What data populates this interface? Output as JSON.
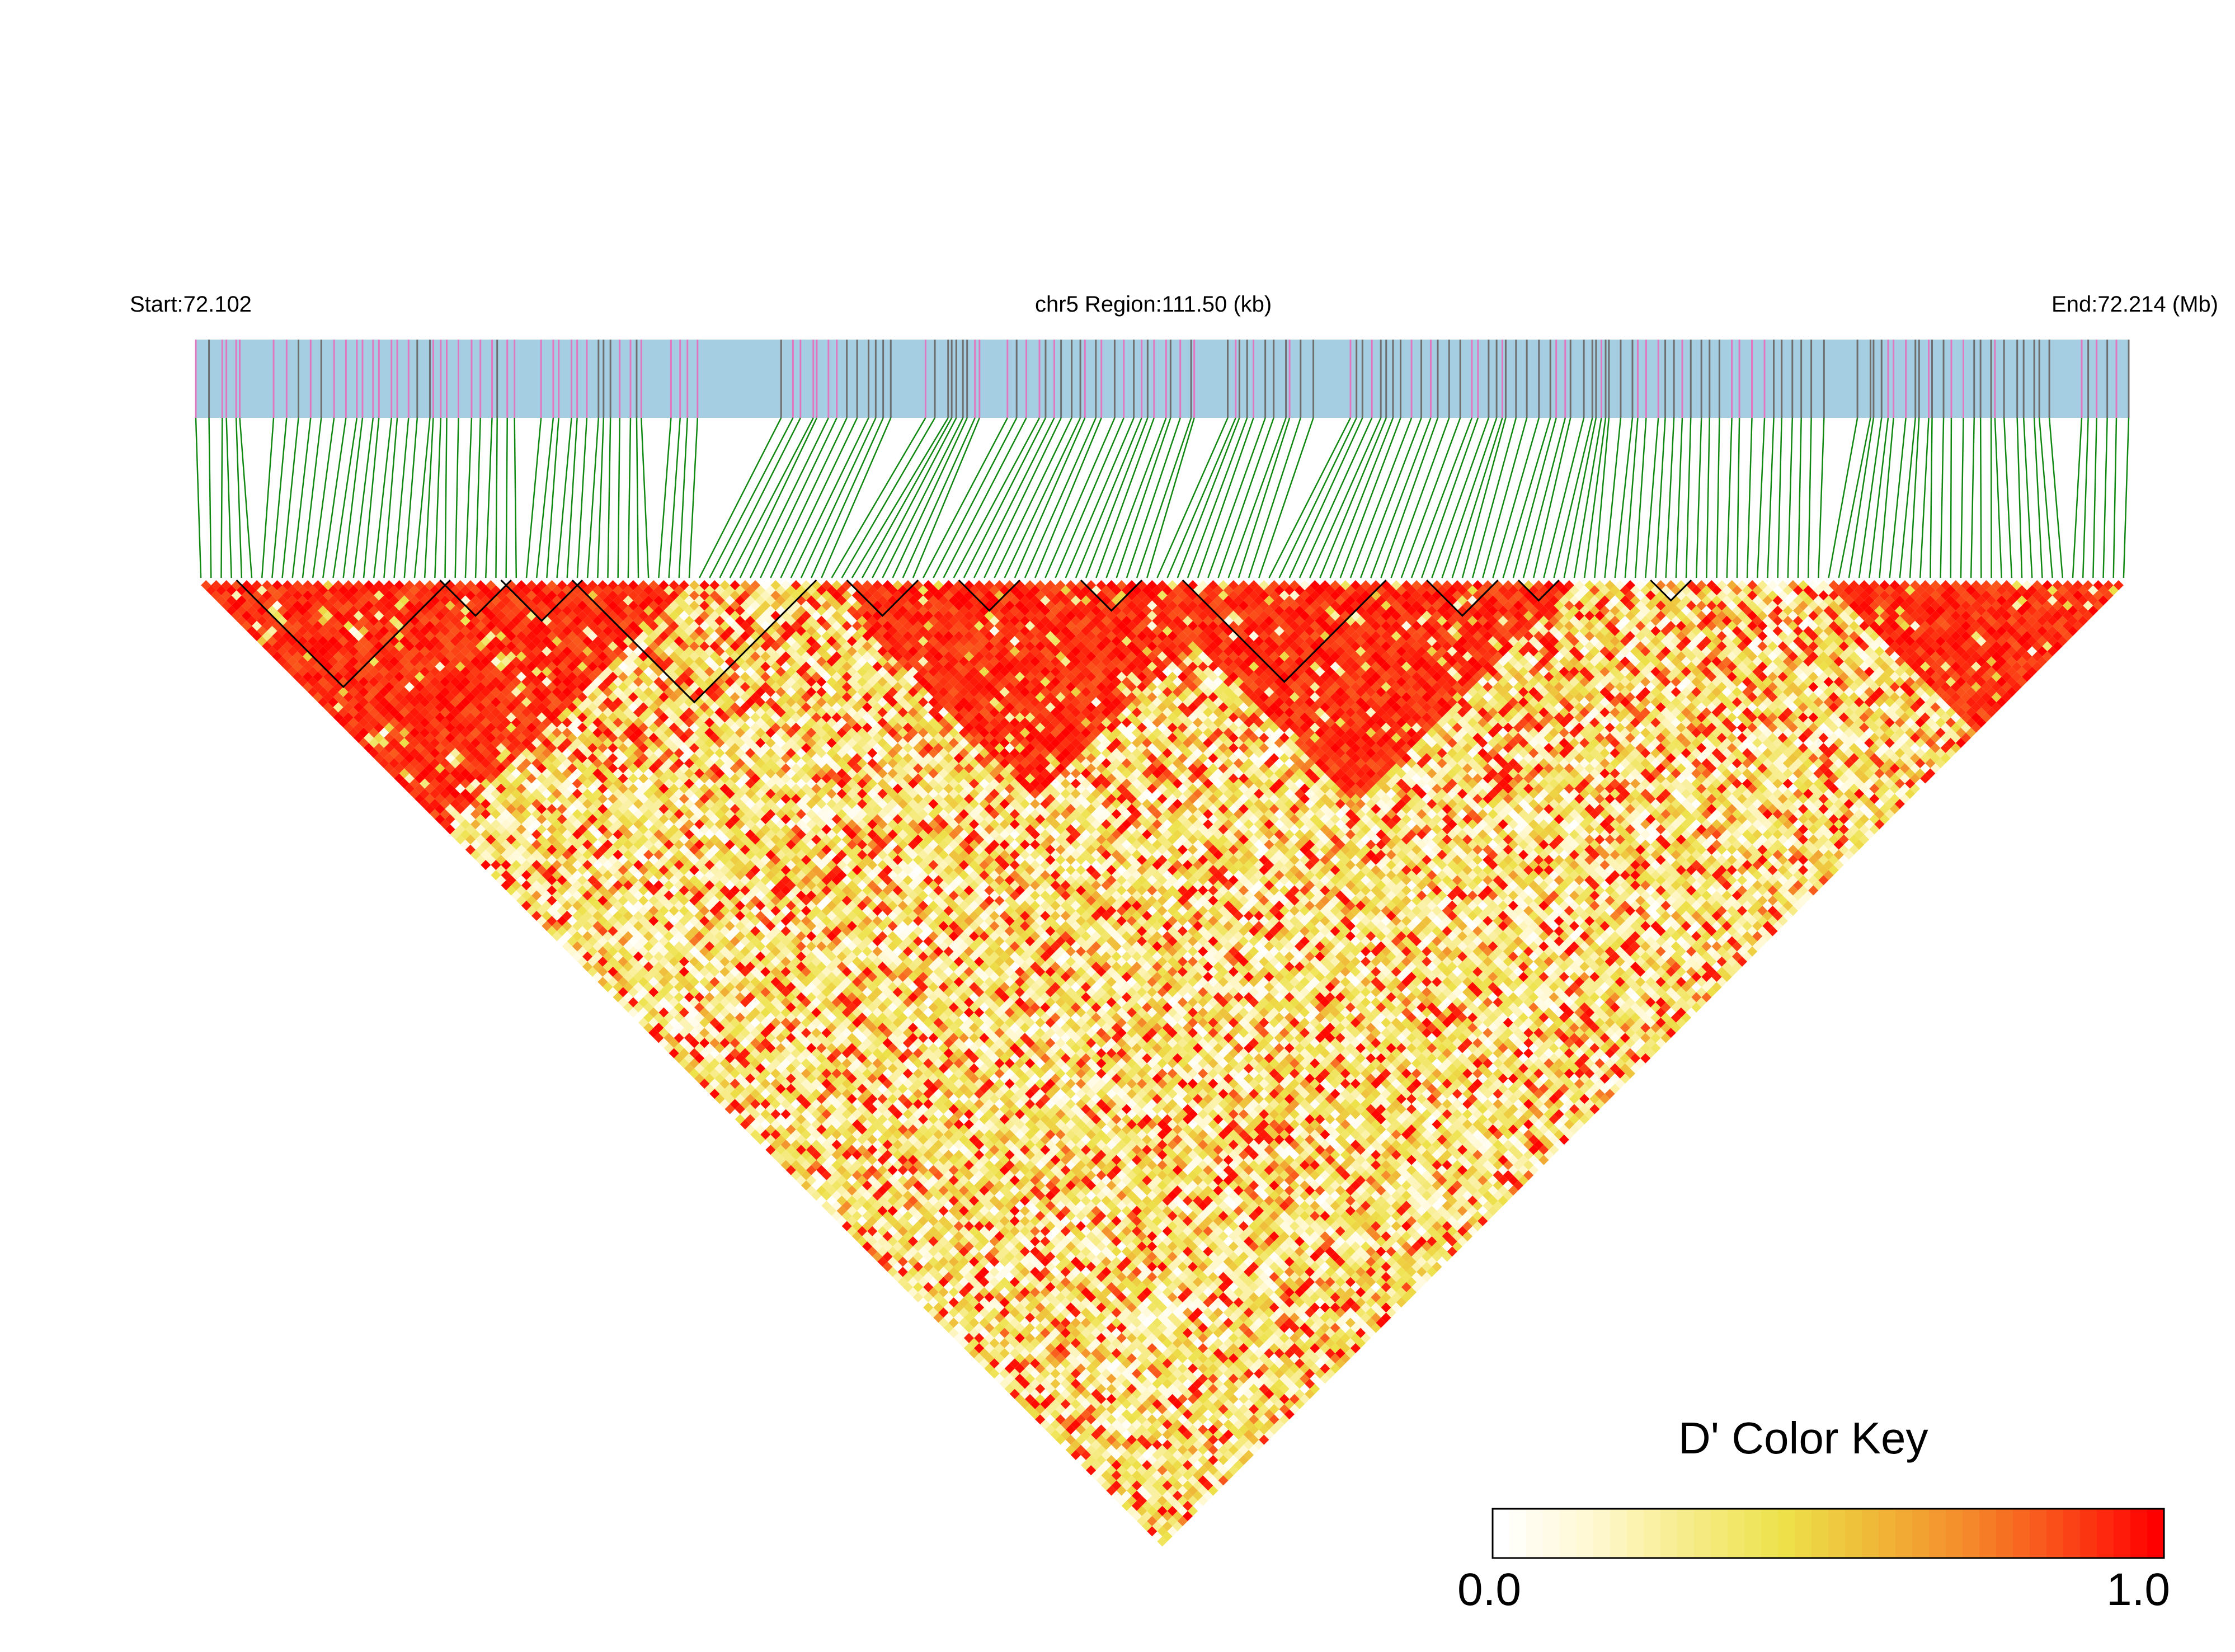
{
  "header": {
    "start_label": "Start:72.102",
    "region_label": "chr5 Region:111.50 (kb)",
    "end_label": "End:72.214 (Mb)"
  },
  "color_key": {
    "title": "D' Color Key",
    "min_label": "0.0",
    "max_label": "1.0",
    "colors": [
      "#ffffff",
      "#fff8d0",
      "#f7ec8a",
      "#ede24a",
      "#f0b838",
      "#f58a2a",
      "#fb4a18",
      "#ff0000"
    ]
  },
  "track_colors": {
    "band": "#a6cee3",
    "snp_grey": "#6e6e6e",
    "snp_pink": "#e078c0",
    "connector": "#118811",
    "block_outline": "#000000"
  },
  "chart_data": {
    "type": "heatmap",
    "measure": "D'",
    "value_range": [
      0,
      1
    ],
    "chromosome": "chr5",
    "region_start_mb": 72.102,
    "region_end_mb": 72.214,
    "region_length_kb": 111.5,
    "n_snps": 190,
    "red_ld_blocks": [
      {
        "first_snp": 0,
        "last_snp": 48
      },
      {
        "first_snp": 61,
        "last_snp": 103
      },
      {
        "first_snp": 92,
        "last_snp": 135
      },
      {
        "first_snp": 160,
        "last_snp": 189
      }
    ],
    "outlined_haplotype_blocks": [
      {
        "first_snp": 4,
        "last_snp": 24
      },
      {
        "first_snp": 24,
        "last_snp": 30
      },
      {
        "first_snp": 30,
        "last_snp": 37
      },
      {
        "first_snp": 37,
        "last_snp": 60
      },
      {
        "first_snp": 64,
        "last_snp": 70
      },
      {
        "first_snp": 75,
        "last_snp": 80
      },
      {
        "first_snp": 87,
        "last_snp": 92
      },
      {
        "first_snp": 97,
        "last_snp": 116
      },
      {
        "first_snp": 121,
        "last_snp": 127
      },
      {
        "first_snp": 130,
        "last_snp": 133
      },
      {
        "first_snp": 143,
        "last_snp": 146
      }
    ]
  }
}
